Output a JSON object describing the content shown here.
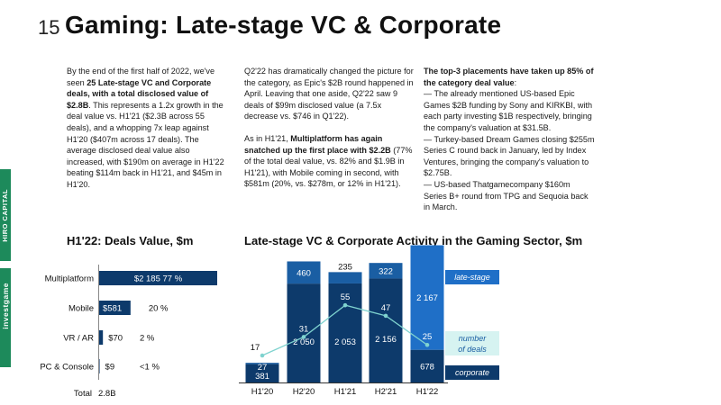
{
  "page": {
    "number": "15",
    "title": "Gaming: Late-stage VC & Corporate",
    "sidebar_top": "HIRO CAPITAL",
    "sidebar_bottom": "investgame"
  },
  "text": {
    "col1": {
      "pre": "By the end of the first half of 2022, we've seen ",
      "bold": "25 Late-stage VC and Corporate deals, with a total disclosed value of $2.8B",
      "post": ". This represents a 1.2x growth in the deal value vs. H1'21 ($2.3B across 55 deals), and a whopping 7x leap against H1'20 ($407m across 17 deals). The average disclosed deal value also increased, with $190m on average in H1'22 beating $114m back in H1'21, and $45m in H1'20."
    },
    "col2": {
      "p1": "Q2'22 has dramatically changed the picture for the category, as Epic's $2B round happened in April. Leaving that one aside, Q2'22 saw 9 deals of $99m disclosed value (a 7.5x decrease vs. $746 in Q1'22).",
      "p2_pre": "As in H1'21, ",
      "p2_bold": "Multiplatform has again snatched up the first place with $2.2B",
      "p2_post": " (77% of the total deal value, vs. 82% and $1.9B in H1'21), with Mobile coming in second, with $581m (20%, vs. $278m, or 12% in H1'21)."
    },
    "col3": {
      "bold1": "The top-3 placements have taken up 85% of the category deal value",
      "colon": ":",
      "l1": "— The already mentioned US-based Epic Games $2B funding by Sony and KIRKBI, with each party investing $1B respectively, bringing the company's valuation at $31.5B.",
      "l2": "— Turkey-based Dream Games closing $255m Series C round back in January, led by Index Ventures, bringing the company's valuation to $2.75B.",
      "l3": "— US-based Thatgamecompany $160m Series B+ round from TPG and Sequoia back in March."
    }
  },
  "colors": {
    "dark": "#0d3a6b",
    "mid": "#1a5ea3",
    "bright": "#1f6fc7",
    "line": "#7fd3cf",
    "bg_label": "#d6f3f1"
  },
  "chart_data": [
    {
      "type": "bar",
      "title": "H1'22: Deals Value, $m",
      "orientation": "horizontal",
      "categories": [
        "Multiplatform",
        "Mobile",
        "VR / AR",
        "PC & Console"
      ],
      "values": [
        2185,
        581,
        70,
        9
      ],
      "value_labels": [
        "$2 185",
        "$581",
        "$70",
        "$9"
      ],
      "percent_labels": [
        "77 %",
        "20 %",
        "2 %",
        "<1 %"
      ],
      "total_label": "Total",
      "total_value": "2.8B"
    },
    {
      "type": "bar",
      "title": "Late-stage VC & Corporate Activity in the Gaming Sector, $m",
      "stacked": true,
      "categories": [
        "H1'20",
        "H2'20",
        "H1'21",
        "H2'21",
        "H1'22"
      ],
      "series": [
        {
          "name": "corporate",
          "values": [
            381,
            2050,
            2053,
            2156,
            678
          ]
        },
        {
          "name": "late-stage",
          "values": [
            27,
            460,
            235,
            322,
            2167
          ]
        }
      ],
      "line": {
        "name": "number of deals",
        "values": [
          17,
          31,
          55,
          47,
          25
        ]
      },
      "legend": {
        "late_stage": "late-stage",
        "deals": "number of deals",
        "corporate": "corporate"
      }
    }
  ]
}
